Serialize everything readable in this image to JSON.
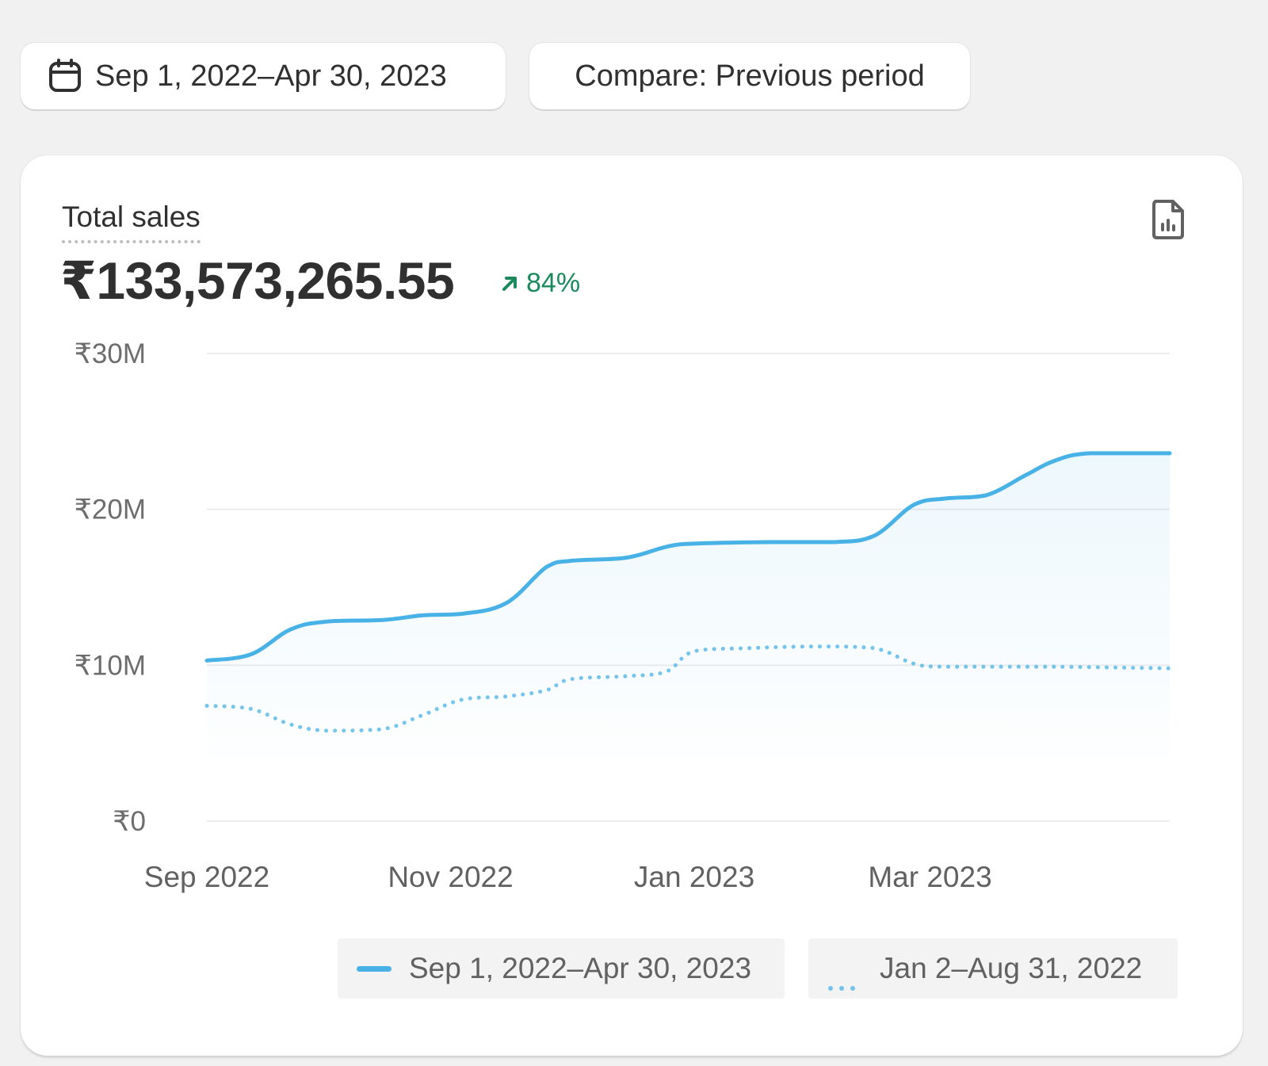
{
  "toolbar": {
    "date_range_label": "Sep 1, 2022–Apr 30, 2023",
    "compare_label": "Compare: Previous period",
    "date_icon": "calendar-icon"
  },
  "metric": {
    "title": "Total sales",
    "value": "₹133,573,265.55",
    "change": "84%",
    "change_direction": "up",
    "change_color": "#1a8a5c",
    "export_icon": "export-report-icon"
  },
  "colors": {
    "current_series": "#48b2e6",
    "previous_series": "#48b2e6",
    "gridline": "#ececec"
  },
  "chart_data": {
    "type": "line",
    "title": "Total sales",
    "xlabel": "",
    "ylabel": "",
    "ylim": [
      0,
      30000000
    ],
    "yticks": [
      {
        "value": 0,
        "label": "₹0"
      },
      {
        "value": 10000000,
        "label": "₹10M"
      },
      {
        "value": 20000000,
        "label": "₹20M"
      },
      {
        "value": 30000000,
        "label": "₹30M"
      }
    ],
    "xlim": [
      "2022-09-01",
      "2023-04-30"
    ],
    "xticks": [
      {
        "value": "2022-09-01",
        "label": "Sep 2022"
      },
      {
        "value": "2022-11-01",
        "label": "Nov 2022"
      },
      {
        "value": "2023-01-01",
        "label": "Jan 2023"
      },
      {
        "value": "2023-03-01",
        "label": "Mar 2023"
      }
    ],
    "grid": true,
    "legend_position": "bottom-right",
    "series": [
      {
        "name": "Sep 1, 2022–Apr 30, 2023",
        "style": "solid",
        "area_fill": true,
        "points": [
          {
            "x": "2022-09-01",
            "y": 10300000
          },
          {
            "x": "2022-09-12",
            "y": 10700000
          },
          {
            "x": "2022-09-22",
            "y": 12300000
          },
          {
            "x": "2022-10-01",
            "y": 12800000
          },
          {
            "x": "2022-10-15",
            "y": 12900000
          },
          {
            "x": "2022-10-25",
            "y": 13200000
          },
          {
            "x": "2022-11-04",
            "y": 13300000
          },
          {
            "x": "2022-11-15",
            "y": 14000000
          },
          {
            "x": "2022-11-25",
            "y": 16300000
          },
          {
            "x": "2022-12-01",
            "y": 16700000
          },
          {
            "x": "2022-12-15",
            "y": 16900000
          },
          {
            "x": "2022-12-25",
            "y": 17600000
          },
          {
            "x": "2023-01-01",
            "y": 17800000
          },
          {
            "x": "2023-01-20",
            "y": 17900000
          },
          {
            "x": "2023-02-05",
            "y": 17900000
          },
          {
            "x": "2023-02-15",
            "y": 18300000
          },
          {
            "x": "2023-02-25",
            "y": 20300000
          },
          {
            "x": "2023-03-05",
            "y": 20700000
          },
          {
            "x": "2023-03-15",
            "y": 20900000
          },
          {
            "x": "2023-03-25",
            "y": 22200000
          },
          {
            "x": "2023-04-01",
            "y": 23100000
          },
          {
            "x": "2023-04-10",
            "y": 23600000
          },
          {
            "x": "2023-04-30",
            "y": 23600000
          }
        ]
      },
      {
        "name": "Jan 2–Aug 31, 2022",
        "style": "dotted",
        "area_fill": false,
        "points": [
          {
            "x": "2022-09-01",
            "y": 7400000
          },
          {
            "x": "2022-09-12",
            "y": 7200000
          },
          {
            "x": "2022-09-22",
            "y": 6200000
          },
          {
            "x": "2022-10-01",
            "y": 5800000
          },
          {
            "x": "2022-10-15",
            "y": 5900000
          },
          {
            "x": "2022-10-25",
            "y": 6800000
          },
          {
            "x": "2022-11-04",
            "y": 7800000
          },
          {
            "x": "2022-11-15",
            "y": 8000000
          },
          {
            "x": "2022-11-25",
            "y": 8400000
          },
          {
            "x": "2022-12-01",
            "y": 9100000
          },
          {
            "x": "2022-12-15",
            "y": 9300000
          },
          {
            "x": "2022-12-25",
            "y": 9600000
          },
          {
            "x": "2023-01-01",
            "y": 10900000
          },
          {
            "x": "2023-01-15",
            "y": 11100000
          },
          {
            "x": "2023-02-01",
            "y": 11200000
          },
          {
            "x": "2023-02-15",
            "y": 11100000
          },
          {
            "x": "2023-02-25",
            "y": 10100000
          },
          {
            "x": "2023-03-05",
            "y": 9900000
          },
          {
            "x": "2023-04-01",
            "y": 9900000
          },
          {
            "x": "2023-04-30",
            "y": 9800000
          }
        ]
      }
    ]
  }
}
